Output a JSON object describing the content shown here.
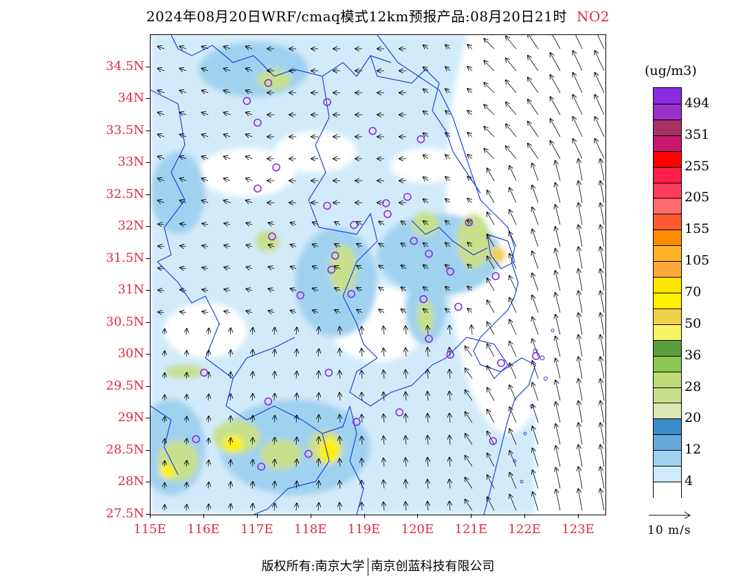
{
  "header": {
    "title": "2024年08月20日WRF/cmaq模式12km预报产品:08月20日21时",
    "species": "NO2"
  },
  "axes": {
    "lat_labels": [
      "34.5N",
      "34N",
      "33.5N",
      "33N",
      "32.5N",
      "32N",
      "31.5N",
      "31N",
      "30.5N",
      "30N",
      "29.5N",
      "29N",
      "28.5N",
      "28N",
      "27.5N"
    ],
    "lon_labels": [
      "115E",
      "116E",
      "117E",
      "118E",
      "119E",
      "120E",
      "121E",
      "122E",
      "123E"
    ],
    "lat_range": [
      27.5,
      35.0
    ],
    "lon_range": [
      115.0,
      123.5
    ],
    "label_color": "#e0283c"
  },
  "colorbar": {
    "unit": "(ug/m3)",
    "labels": [
      "494",
      "351",
      "255",
      "205",
      "155",
      "105",
      "70",
      "50",
      "36",
      "28",
      "20",
      "12",
      "4"
    ],
    "colors_top_to_bottom": [
      "#8a2be2",
      "#9b30c8",
      "#a83264",
      "#c8186e",
      "#ff0000",
      "#ff1e4a",
      "#ff3c5a",
      "#ff6a6a",
      "#ff5a32",
      "#ff8c00",
      "#ffb428",
      "#ffa83c",
      "#ffe600",
      "#fff000",
      "#f0d24a",
      "#f5f564",
      "#5a9e3c",
      "#8cc850",
      "#bedc78",
      "#c8e08c",
      "#dce8b4",
      "#3c8cc8",
      "#64a8dc",
      "#a0d2f0",
      "#d2ebfa",
      "#ffffff"
    ]
  },
  "vector_legend": {
    "label": "10 m/s"
  },
  "stations": [
    {
      "lon": 117.2,
      "lat": 34.25
    },
    {
      "lon": 116.8,
      "lat": 33.97
    },
    {
      "lon": 118.3,
      "lat": 33.95
    },
    {
      "lon": 117.0,
      "lat": 33.63
    },
    {
      "lon": 119.15,
      "lat": 33.5
    },
    {
      "lon": 120.05,
      "lat": 33.37
    },
    {
      "lon": 117.35,
      "lat": 32.93
    },
    {
      "lon": 117.0,
      "lat": 32.6
    },
    {
      "lon": 118.3,
      "lat": 32.33
    },
    {
      "lon": 119.4,
      "lat": 32.37
    },
    {
      "lon": 119.8,
      "lat": 32.47
    },
    {
      "lon": 119.43,
      "lat": 32.2
    },
    {
      "lon": 118.8,
      "lat": 32.03
    },
    {
      "lon": 120.95,
      "lat": 32.07
    },
    {
      "lon": 117.27,
      "lat": 31.85
    },
    {
      "lon": 119.92,
      "lat": 31.78
    },
    {
      "lon": 120.2,
      "lat": 31.58
    },
    {
      "lon": 118.45,
      "lat": 31.55
    },
    {
      "lon": 118.38,
      "lat": 31.33
    },
    {
      "lon": 120.6,
      "lat": 31.3
    },
    {
      "lon": 121.45,
      "lat": 31.23
    },
    {
      "lon": 117.8,
      "lat": 30.93
    },
    {
      "lon": 118.75,
      "lat": 30.95
    },
    {
      "lon": 120.1,
      "lat": 30.87
    },
    {
      "lon": 120.75,
      "lat": 30.75
    },
    {
      "lon": 120.2,
      "lat": 30.25
    },
    {
      "lon": 120.6,
      "lat": 30.0
    },
    {
      "lon": 122.2,
      "lat": 29.98
    },
    {
      "lon": 121.55,
      "lat": 29.87
    },
    {
      "lon": 116.0,
      "lat": 29.72
    },
    {
      "lon": 118.33,
      "lat": 29.72
    },
    {
      "lon": 117.2,
      "lat": 29.27
    },
    {
      "lon": 119.65,
      "lat": 29.1
    },
    {
      "lon": 118.85,
      "lat": 28.95
    },
    {
      "lon": 115.85,
      "lat": 28.68
    },
    {
      "lon": 121.4,
      "lat": 28.65
    },
    {
      "lon": 117.95,
      "lat": 28.45
    },
    {
      "lon": 117.07,
      "lat": 28.25
    }
  ],
  "footer": {
    "left": "版权所有:南京大学",
    "right": "南京创蓝科技有限公司"
  }
}
